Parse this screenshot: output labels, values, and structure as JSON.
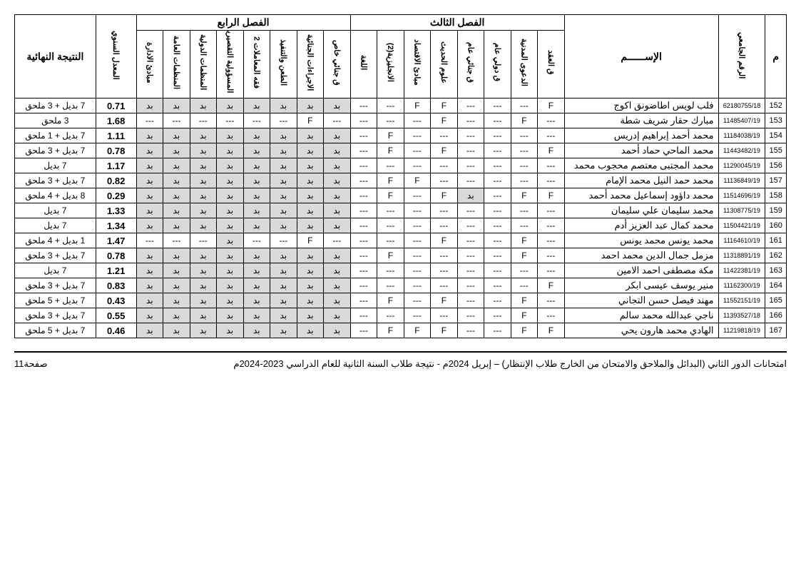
{
  "headers": {
    "seq": "م",
    "uid": "الرقم الجامعي",
    "name": "الإســــــم",
    "sem3_group": "الفصل الثالث",
    "sem4_group": "الفصل الرابع",
    "gpa": "المعدل السنوي",
    "result": "النتيجة النهائية",
    "sem3_cols": [
      "ق العقد",
      "الدعوى المدنية",
      "ق دولي عام",
      "ق جنائي عام",
      "علوم الحديث",
      "مبادئ الاقتصاد",
      "الانجليزية(2)",
      "اللغة"
    ],
    "sem4_cols": [
      "ق جنائي خاص",
      "الاجراءات الجنائية",
      "الطعن والتنفيذ",
      "فقه المعاملات 2",
      "المسؤولية التقصيرية",
      "المنظمات الدولية",
      "المنظمات العامة",
      "مبادئ الادارة"
    ]
  },
  "rows": [
    {
      "seq": "152",
      "uid": "62180755/18",
      "name": "فلب لويس اطاضونق اكوج",
      "s3": [
        "F",
        "---",
        "---",
        "---",
        "F",
        "F",
        "---"
      ],
      "ext3": "---",
      "s4": [
        "بد",
        "بد",
        "بد",
        "بد",
        "بد",
        "بد",
        "بد",
        "بد"
      ],
      "s4sh": [
        1,
        1,
        1,
        1,
        1,
        1,
        1,
        1
      ],
      "gpa": "0.71",
      "result": "7 بديل + 3 ملحق"
    },
    {
      "seq": "153",
      "uid": "11485407/19",
      "name": "مبارك حقار شريف شطة",
      "s3": [
        "---",
        "F",
        "---",
        "---",
        "F",
        "---",
        "---"
      ],
      "ext3": "---",
      "s4": [
        "---",
        "F",
        "---",
        "---",
        "---",
        "---",
        "---",
        "---"
      ],
      "s4sh": [
        0,
        0,
        0,
        0,
        0,
        0,
        0,
        0
      ],
      "gpa": "1.68",
      "result": "3 ملحق"
    },
    {
      "seq": "154",
      "uid": "11184038/19",
      "name": "محمد أحمد إبراهيم إدريس",
      "s3": [
        "---",
        "---",
        "---",
        "---",
        "---",
        "---",
        "F"
      ],
      "ext3": "---",
      "s4": [
        "بد",
        "بد",
        "بد",
        "بد",
        "بد",
        "بد",
        "بد",
        "بد"
      ],
      "s4sh": [
        1,
        1,
        1,
        1,
        1,
        1,
        1,
        1
      ],
      "gpa": "1.11",
      "result": "7 بديل + 1 ملحق"
    },
    {
      "seq": "155",
      "uid": "11443482/19",
      "name": "محمد الماحي حماد أحمد",
      "s3": [
        "F",
        "---",
        "---",
        "---",
        "F",
        "---",
        "F"
      ],
      "ext3": "---",
      "s4": [
        "بد",
        "بد",
        "بد",
        "بد",
        "بد",
        "بد",
        "بد",
        "بد"
      ],
      "s4sh": [
        1,
        1,
        1,
        1,
        1,
        1,
        1,
        1
      ],
      "gpa": "0.78",
      "result": "7 بديل + 3 ملحق"
    },
    {
      "seq": "156",
      "uid": "11290045/19",
      "name": "محمد المجتبى معتصم محجوب محمد",
      "s3": [
        "---",
        "---",
        "---",
        "---",
        "---",
        "---",
        "---"
      ],
      "ext3": "---",
      "s4": [
        "بد",
        "بد",
        "بد",
        "بد",
        "بد",
        "بد",
        "بد",
        "بد"
      ],
      "s4sh": [
        1,
        1,
        1,
        1,
        1,
        1,
        1,
        1
      ],
      "gpa": "1.17",
      "result": "7 بديل"
    },
    {
      "seq": "157",
      "uid": "11136849/19",
      "name": "محمد حمد النيل محمد الإمام",
      "s3": [
        "---",
        "---",
        "---",
        "---",
        "---",
        "F",
        "F"
      ],
      "ext3": "---",
      "s4": [
        "بد",
        "بد",
        "بد",
        "بد",
        "بد",
        "بد",
        "بد",
        "بد"
      ],
      "s4sh": [
        1,
        1,
        1,
        1,
        1,
        1,
        1,
        1
      ],
      "gpa": "0.82",
      "result": "7 بديل + 3 ملحق"
    },
    {
      "seq": "158",
      "uid": "11514696/19",
      "name": "محمد داؤود إسماعيل محمد أحمد",
      "s3": [
        "F",
        "F",
        "---",
        "بد",
        "F",
        "---",
        "F"
      ],
      "ext3": "---",
      "s4": [
        "بد",
        "بد",
        "بد",
        "بد",
        "بد",
        "بد",
        "بد",
        "بد"
      ],
      "s4sh": [
        1,
        1,
        1,
        1,
        1,
        1,
        1,
        1
      ],
      "gpa": "0.29",
      "result": "8 بديل + 4 ملحق",
      "sh3": [
        0,
        0,
        0,
        1,
        0,
        0,
        0
      ]
    },
    {
      "seq": "159",
      "uid": "11308775/19",
      "name": "محمد سليمان علي سليمان",
      "s3": [
        "---",
        "---",
        "---",
        "---",
        "---",
        "---",
        "---"
      ],
      "ext3": "---",
      "s4": [
        "بد",
        "بد",
        "بد",
        "بد",
        "بد",
        "بد",
        "بد",
        "بد"
      ],
      "s4sh": [
        1,
        1,
        1,
        1,
        1,
        1,
        1,
        1
      ],
      "gpa": "1.33",
      "result": "7 بديل"
    },
    {
      "seq": "160",
      "uid": "11504421/19",
      "name": "محمد كمال عبد العزيز أدم",
      "s3": [
        "---",
        "---",
        "---",
        "---",
        "---",
        "---",
        "---"
      ],
      "ext3": "---",
      "s4": [
        "بد",
        "بد",
        "بد",
        "بد",
        "بد",
        "بد",
        "بد",
        "بد"
      ],
      "s4sh": [
        1,
        1,
        1,
        1,
        1,
        1,
        1,
        1
      ],
      "gpa": "1.34",
      "result": "7 بديل"
    },
    {
      "seq": "161",
      "uid": "11164610/19",
      "name": "محمد يونس محمد يونس",
      "s3": [
        "---",
        "F",
        "---",
        "---",
        "F",
        "---",
        "---"
      ],
      "ext3": "---",
      "s4": [
        "---",
        "F",
        "---",
        "---",
        "بد",
        "---",
        "---",
        "---"
      ],
      "s4sh": [
        0,
        0,
        0,
        0,
        1,
        0,
        0,
        0
      ],
      "gpa": "1.47",
      "result": "1 بديل + 4 ملحق"
    },
    {
      "seq": "162",
      "uid": "11318891/19",
      "name": "مزمل جمال الدين محمد احمد",
      "s3": [
        "---",
        "F",
        "---",
        "---",
        "---",
        "---",
        "F"
      ],
      "ext3": "---",
      "s4": [
        "بد",
        "بد",
        "بد",
        "بد",
        "بد",
        "بد",
        "بد",
        "بد"
      ],
      "s4sh": [
        1,
        1,
        1,
        1,
        1,
        1,
        1,
        1
      ],
      "gpa": "0.78",
      "result": "7 بديل + 3 ملحق"
    },
    {
      "seq": "163",
      "uid": "11422381/19",
      "name": "مكة مصطفى احمد الامين",
      "s3": [
        "---",
        "---",
        "---",
        "---",
        "---",
        "---",
        "---"
      ],
      "ext3": "---",
      "s4": [
        "بد",
        "بد",
        "بد",
        "بد",
        "بد",
        "بد",
        "بد",
        "بد"
      ],
      "s4sh": [
        1,
        1,
        1,
        1,
        1,
        1,
        1,
        1
      ],
      "gpa": "1.21",
      "result": "7 بديل"
    },
    {
      "seq": "164",
      "uid": "11162300/19",
      "name": "منير يوسف عيسى ابكر",
      "s3": [
        "F",
        "---",
        "---",
        "---",
        "---",
        "---",
        "---"
      ],
      "ext3": "---",
      "s4": [
        "بد",
        "بد",
        "بد",
        "بد",
        "بد",
        "بد",
        "بد",
        "بد"
      ],
      "s4sh": [
        1,
        1,
        1,
        1,
        1,
        1,
        1,
        1
      ],
      "gpa": "0.83",
      "result": "7 بديل + 3 ملحق"
    },
    {
      "seq": "165",
      "uid": "11552151/19",
      "name": "مهند فيصل حسن التجاني",
      "s3": [
        "---",
        "F",
        "---",
        "---",
        "F",
        "---",
        "F"
      ],
      "ext3": "---",
      "s4": [
        "بد",
        "بد",
        "بد",
        "بد",
        "بد",
        "بد",
        "بد",
        "بد"
      ],
      "s4sh": [
        1,
        1,
        1,
        1,
        1,
        1,
        1,
        1
      ],
      "gpa": "0.43",
      "result": "7 بديل + 5 ملحق"
    },
    {
      "seq": "166",
      "uid": "11393527/18",
      "name": "ناجي عبدالله محمد سالم",
      "s3": [
        "---",
        "F",
        "---",
        "---",
        "---",
        "---",
        "---"
      ],
      "ext3": "---",
      "s4": [
        "بد",
        "بد",
        "بد",
        "بد",
        "بد",
        "بد",
        "بد",
        "بد"
      ],
      "s4sh": [
        1,
        1,
        1,
        1,
        1,
        1,
        1,
        1
      ],
      "gpa": "0.55",
      "result": "7 بديل + 3 ملحق"
    },
    {
      "seq": "167",
      "uid": "11219818/19",
      "name": "الهادي محمد هارون يحي",
      "s3": [
        "F",
        "F",
        "---",
        "---",
        "F",
        "F",
        "F"
      ],
      "ext3": "---",
      "s4": [
        "بد",
        "بد",
        "بد",
        "بد",
        "بد",
        "بد",
        "بد",
        "بد"
      ],
      "s4sh": [
        1,
        1,
        1,
        1,
        1,
        1,
        1,
        1
      ],
      "gpa": "0.46",
      "result": "7 بديل + 5 ملحق"
    }
  ],
  "footer": {
    "right": "امتحانات الدور الثاني (البدائل والملاحق والامتحان من الخارج طلاب الإنتظار) – إبريل 2024م",
    "center": "نتيجة طلاب السنة الثانية للعام الدراسي 2023-2024م",
    "left": "صفحة11",
    "sep": "   -   "
  }
}
